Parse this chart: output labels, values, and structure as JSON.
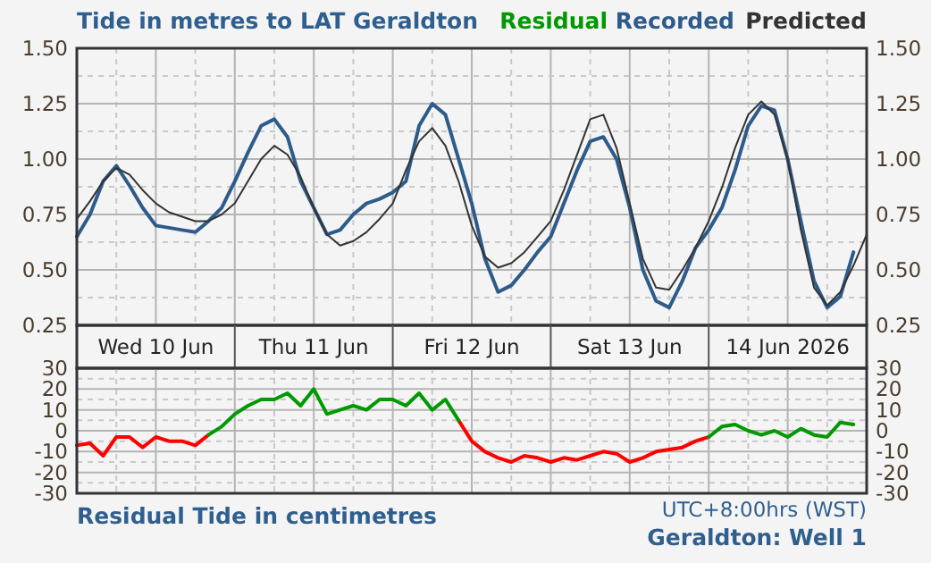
{
  "chart_data": [
    {
      "type": "line",
      "title": "Tide in metres to LAT Geraldton",
      "x": [
        "2026-06-10T00:00",
        "2026-06-10T02:00",
        "2026-06-10T04:00",
        "2026-06-10T06:00",
        "2026-06-10T08:00",
        "2026-06-10T10:00",
        "2026-06-10T12:00",
        "2026-06-10T14:00",
        "2026-06-10T16:00",
        "2026-06-10T18:00",
        "2026-06-10T20:00",
        "2026-06-10T22:00",
        "2026-06-11T00:00",
        "2026-06-11T02:00",
        "2026-06-11T04:00",
        "2026-06-11T06:00",
        "2026-06-11T08:00",
        "2026-06-11T10:00",
        "2026-06-11T12:00",
        "2026-06-11T14:00",
        "2026-06-11T16:00",
        "2026-06-11T18:00",
        "2026-06-11T20:00",
        "2026-06-11T22:00",
        "2026-06-12T00:00",
        "2026-06-12T02:00",
        "2026-06-12T04:00",
        "2026-06-12T06:00",
        "2026-06-12T08:00",
        "2026-06-12T10:00",
        "2026-06-12T12:00",
        "2026-06-12T14:00",
        "2026-06-12T16:00",
        "2026-06-12T18:00",
        "2026-06-12T20:00",
        "2026-06-12T22:00",
        "2026-06-13T00:00",
        "2026-06-13T02:00",
        "2026-06-13T04:00",
        "2026-06-13T06:00",
        "2026-06-13T08:00",
        "2026-06-13T10:00",
        "2026-06-13T12:00",
        "2026-06-13T14:00",
        "2026-06-13T16:00",
        "2026-06-13T18:00",
        "2026-06-13T20:00",
        "2026-06-13T22:00",
        "2026-06-14T00:00",
        "2026-06-14T02:00",
        "2026-06-14T04:00",
        "2026-06-14T06:00",
        "2026-06-14T08:00",
        "2026-06-14T10:00",
        "2026-06-14T12:00",
        "2026-06-14T14:00",
        "2026-06-14T16:00",
        "2026-06-14T18:00",
        "2026-06-14T20:00",
        "2026-06-14T22:00",
        "2026-06-15T00:00"
      ],
      "xlim": [
        "2026-06-10T00:00",
        "2026-06-15T00:00"
      ],
      "xticks": [
        {
          "value": "2026-06-10T12:00",
          "label": "Wed 10 Jun"
        },
        {
          "value": "2026-06-11T00:00",
          "label": null
        },
        {
          "value": "2026-06-11T12:00",
          "label": "Thu 11 Jun"
        },
        {
          "value": "2026-06-12T00:00",
          "label": null
        },
        {
          "value": "2026-06-12T12:00",
          "label": "Fri 12 Jun"
        },
        {
          "value": "2026-06-13T00:00",
          "label": null
        },
        {
          "value": "2026-06-13T12:00",
          "label": "Sat 13 Jun"
        },
        {
          "value": "2026-06-14T00:00",
          "label": null
        },
        {
          "value": "2026-06-14T12:00",
          "label": "14 Jun 2026"
        }
      ],
      "ylim": [
        0.25,
        1.5
      ],
      "yticks": [
        {
          "value": 0.25,
          "label": "0.25"
        },
        {
          "value": 0.5,
          "label": "0.50"
        },
        {
          "value": 0.75,
          "label": "0.75"
        },
        {
          "value": 1,
          "label": "1.00"
        },
        {
          "value": 1.25,
          "label": "1.25"
        },
        {
          "value": 1.5,
          "label": "1.50"
        }
      ],
      "y2lim": [
        0.25,
        1.5
      ],
      "y2ticks": [
        {
          "value": 0.25,
          "label": "0.25"
        },
        {
          "value": 0.5,
          "label": "0.50"
        },
        {
          "value": 0.75,
          "label": "0.75"
        },
        {
          "value": 1,
          "label": "1.00"
        },
        {
          "value": 1.25,
          "label": "1.25"
        },
        {
          "value": 1.5,
          "label": "1.50"
        }
      ],
      "grid": true,
      "legend": "top right",
      "marker": "none",
      "series": [
        {
          "name": "Recorded",
          "color": "#2d5b8a",
          "values": [
            0.65,
            0.75,
            0.9,
            0.97,
            0.88,
            0.78,
            0.7,
            0.69,
            0.68,
            0.67,
            0.72,
            0.78,
            0.9,
            1.03,
            1.15,
            1.18,
            1.1,
            0.9,
            0.78,
            0.66,
            0.68,
            0.75,
            0.8,
            0.82,
            0.85,
            0.9,
            1.15,
            1.25,
            1.2,
            1.0,
            0.8,
            0.55,
            0.4,
            0.43,
            0.5,
            0.58,
            0.65,
            0.8,
            0.95,
            1.08,
            1.1,
            1.0,
            0.78,
            0.5,
            0.36,
            0.33,
            0.45,
            0.6,
            0.68,
            0.78,
            0.95,
            1.15,
            1.24,
            1.22,
            1.0,
            0.72,
            0.45,
            0.33,
            0.38,
            0.58,
            null
          ]
        },
        {
          "name": "Predicted",
          "color": "#333333",
          "values": [
            0.73,
            0.81,
            0.9,
            0.96,
            0.93,
            0.86,
            0.8,
            0.76,
            0.74,
            0.72,
            0.72,
            0.75,
            0.8,
            0.9,
            1.0,
            1.06,
            1.02,
            0.92,
            0.78,
            0.66,
            0.61,
            0.63,
            0.67,
            0.73,
            0.8,
            0.95,
            1.08,
            1.14,
            1.06,
            0.9,
            0.7,
            0.56,
            0.51,
            0.53,
            0.58,
            0.65,
            0.72,
            0.86,
            1.02,
            1.18,
            1.2,
            1.05,
            0.8,
            0.55,
            0.42,
            0.41,
            0.5,
            0.6,
            0.72,
            0.87,
            1.05,
            1.2,
            1.26,
            1.2,
            1.0,
            0.68,
            0.42,
            0.34,
            0.4,
            0.52,
            0.66
          ]
        }
      ]
    },
    {
      "type": "line",
      "xlabel": "Residual Tide in centimetres",
      "annotations": [
        "UTC+8:00hrs (WST)",
        "Geraldton:  Well 1"
      ],
      "x": [
        "2026-06-10T00:00",
        "2026-06-10T02:00",
        "2026-06-10T04:00",
        "2026-06-10T06:00",
        "2026-06-10T08:00",
        "2026-06-10T10:00",
        "2026-06-10T12:00",
        "2026-06-10T14:00",
        "2026-06-10T16:00",
        "2026-06-10T18:00",
        "2026-06-10T20:00",
        "2026-06-10T22:00",
        "2026-06-11T00:00",
        "2026-06-11T02:00",
        "2026-06-11T04:00",
        "2026-06-11T06:00",
        "2026-06-11T08:00",
        "2026-06-11T10:00",
        "2026-06-11T12:00",
        "2026-06-11T14:00",
        "2026-06-11T16:00",
        "2026-06-11T18:00",
        "2026-06-11T20:00",
        "2026-06-11T22:00",
        "2026-06-12T00:00",
        "2026-06-12T02:00",
        "2026-06-12T04:00",
        "2026-06-12T06:00",
        "2026-06-12T08:00",
        "2026-06-12T10:00",
        "2026-06-12T12:00",
        "2026-06-12T14:00",
        "2026-06-12T16:00",
        "2026-06-12T18:00",
        "2026-06-12T20:00",
        "2026-06-12T22:00",
        "2026-06-13T00:00",
        "2026-06-13T02:00",
        "2026-06-13T04:00",
        "2026-06-13T06:00",
        "2026-06-13T08:00",
        "2026-06-13T10:00",
        "2026-06-13T12:00",
        "2026-06-13T14:00",
        "2026-06-13T16:00",
        "2026-06-13T18:00",
        "2026-06-13T20:00",
        "2026-06-13T22:00",
        "2026-06-14T00:00",
        "2026-06-14T02:00",
        "2026-06-14T04:00",
        "2026-06-14T06:00",
        "2026-06-14T08:00",
        "2026-06-14T10:00",
        "2026-06-14T12:00",
        "2026-06-14T14:00",
        "2026-06-14T16:00",
        "2026-06-14T18:00",
        "2026-06-14T20:00",
        "2026-06-14T22:00"
      ],
      "xlim": [
        "2026-06-10T00:00",
        "2026-06-15T00:00"
      ],
      "xticks": [
        {
          "value": "2026-06-10T12:00",
          "label": null
        },
        {
          "value": "2026-06-11T00:00",
          "label": null
        },
        {
          "value": "2026-06-11T12:00",
          "label": null
        },
        {
          "value": "2026-06-12T00:00",
          "label": null
        },
        {
          "value": "2026-06-12T12:00",
          "label": null
        },
        {
          "value": "2026-06-13T00:00",
          "label": null
        },
        {
          "value": "2026-06-13T12:00",
          "label": null
        },
        {
          "value": "2026-06-14T00:00",
          "label": null
        },
        {
          "value": "2026-06-14T12:00",
          "label": null
        }
      ],
      "ylim": [
        -30,
        30
      ],
      "yticks": [
        -30,
        -20,
        -10,
        0,
        10,
        20,
        30
      ],
      "y2lim": [
        -30,
        30
      ],
      "y2ticks": [
        -30,
        -20,
        -10,
        0,
        10,
        20,
        30
      ],
      "tick_labels": "y",
      "grid": true,
      "legend": "top right",
      "marker": "none",
      "series": [
        {
          "color": "#ff0000",
          "values": [
            -7,
            -6,
            -12,
            -3,
            -3,
            -8,
            -3,
            -5,
            -5,
            -7,
            -2,
            null,
            null,
            null,
            null,
            null,
            null,
            null,
            null,
            null,
            null,
            null,
            null,
            null,
            null,
            null,
            null,
            null,
            null,
            5,
            -5,
            -10,
            -13,
            -15,
            -12,
            -13,
            -15,
            -13,
            -14,
            -12,
            -10,
            -11,
            -15,
            -13,
            -10,
            -9,
            -8,
            -5,
            -3,
            null,
            null,
            null,
            null,
            null,
            null,
            null,
            null,
            null,
            null,
            null
          ]
        },
        {
          "name": "Residual",
          "color": "#009900",
          "values": [
            null,
            null,
            null,
            null,
            null,
            null,
            null,
            null,
            null,
            null,
            -2,
            2,
            8,
            12,
            15,
            15,
            18,
            12,
            20,
            8,
            10,
            12,
            10,
            15,
            15,
            12,
            18,
            10,
            15,
            5,
            null,
            null,
            null,
            null,
            null,
            null,
            null,
            null,
            null,
            null,
            null,
            null,
            null,
            null,
            null,
            null,
            null,
            null,
            -3,
            2,
            3,
            0,
            -2,
            0,
            -3,
            1,
            -2,
            -3,
            4,
            3
          ]
        }
      ]
    }
  ]
}
